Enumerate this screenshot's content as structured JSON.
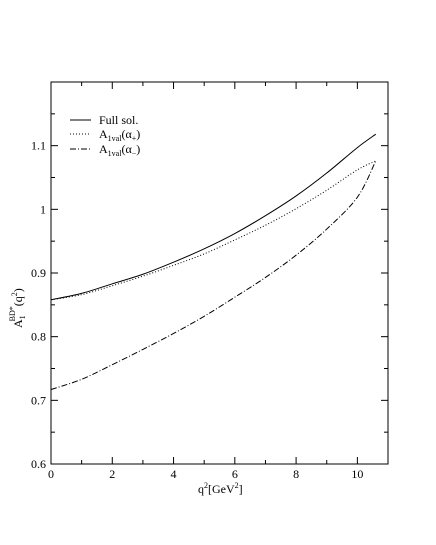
{
  "chart_data": {
    "type": "line",
    "xlim": [
      0,
      11
    ],
    "ylim": [
      0.6,
      1.2
    ],
    "x_ticks": [
      "0",
      "2",
      "4",
      "6",
      "8",
      "10"
    ],
    "y_ticks": [
      "0.6",
      "0.7",
      "0.8",
      "0.9",
      "1",
      "1.1"
    ],
    "x_tick_values": [
      0,
      2,
      4,
      6,
      8,
      10
    ],
    "y_tick_values": [
      0.6,
      0.7,
      0.8,
      0.9,
      1.0,
      1.1
    ],
    "xlabel": {
      "base": "q",
      "sup": "2",
      "rest": "[GeV",
      "sup2": "2",
      "end": "]"
    },
    "ylabel": {
      "base": "A",
      "sub": "1",
      "sup": "BD*",
      "rest": "(q",
      "sup2": "2",
      "end": ")"
    },
    "grid": false,
    "legend_position": "top-left",
    "series": [
      {
        "name": "Full sol.",
        "style": "solid",
        "x": [
          0,
          1,
          2,
          3,
          4,
          5,
          6,
          7,
          8,
          9,
          10,
          10.6
        ],
        "y": [
          0.858,
          0.868,
          0.883,
          0.898,
          0.917,
          0.938,
          0.962,
          0.99,
          1.021,
          1.057,
          1.097,
          1.118
        ]
      },
      {
        "name": "A1val(α+)",
        "label_parts": {
          "base": "A",
          "sub": "1val",
          "rest": "(α",
          "sub2": "+",
          "end": ")"
        },
        "style": "dotted",
        "x": [
          0,
          1,
          2,
          3,
          4,
          5,
          6,
          7,
          8,
          9,
          10,
          10.6
        ],
        "y": [
          0.858,
          0.866,
          0.88,
          0.895,
          0.912,
          0.93,
          0.952,
          0.975,
          1.001,
          1.03,
          1.062,
          1.076
        ]
      },
      {
        "name": "A1val(α−)",
        "label_parts": {
          "base": "A",
          "sub": "1val",
          "rest": "(α",
          "sub2": "−",
          "end": ")"
        },
        "style": "dashdot",
        "x": [
          0,
          1,
          2,
          3,
          4,
          5,
          6,
          7,
          8,
          9,
          10,
          10.6
        ],
        "y": [
          0.717,
          0.733,
          0.756,
          0.78,
          0.805,
          0.832,
          0.862,
          0.893,
          0.928,
          0.969,
          1.019,
          1.076
        ]
      }
    ]
  }
}
